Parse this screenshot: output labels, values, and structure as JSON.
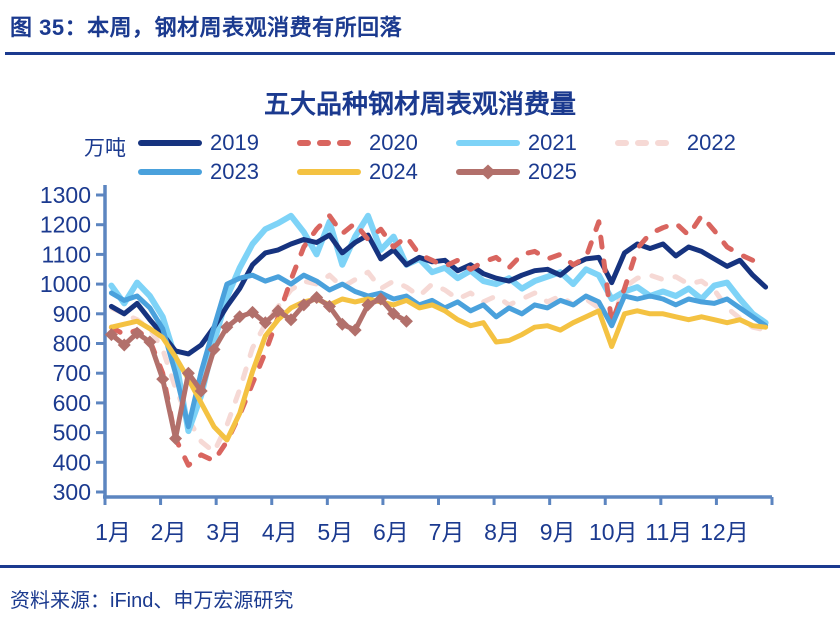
{
  "figure": {
    "caption": "图 35：本周，钢材周表观消费有所回落"
  },
  "source": {
    "text": "资料来源：iFind、申万宏源研究"
  },
  "chart_data": {
    "type": "line",
    "title": "五大品种钢材周表观消费量",
    "unit_label": "万吨",
    "x_axis": {
      "months": [
        "1月",
        "2月",
        "3月",
        "4月",
        "5月",
        "6月",
        "7月",
        "8月",
        "9月",
        "10月",
        "11月",
        "12月"
      ],
      "weeks_per_year": 52
    },
    "y_axis": {
      "min": 300,
      "max": 1300,
      "ticks": [
        1300,
        1200,
        1100,
        1000,
        900,
        800,
        700,
        600,
        500,
        400,
        300
      ]
    },
    "colors": {
      "axis": "#5C85C0",
      "text": "#1B3A8F"
    },
    "legend_position": "top",
    "grid": false,
    "draw_order": [
      "2022",
      "2021",
      "2019",
      "2020",
      "2023",
      "2024",
      "2025"
    ],
    "series": [
      {
        "name": "2019",
        "color": "#16337F",
        "style": "solid",
        "width": 5,
        "values": [
          925,
          900,
          935,
          880,
          830,
          775,
          765,
          795,
          855,
          925,
          985,
          1065,
          1105,
          1115,
          1135,
          1150,
          1140,
          1165,
          1105,
          1140,
          1165,
          1085,
          1115,
          1065,
          1090,
          1075,
          1080,
          1045,
          1065,
          1035,
          1020,
          1010,
          1030,
          1045,
          1050,
          1030,
          1065,
          1085,
          1090,
          1005,
          1105,
          1135,
          1120,
          1135,
          1095,
          1125,
          1110,
          1085,
          1060,
          1080,
          1030,
          990
        ]
      },
      {
        "name": "2020",
        "color": "#D9655F",
        "style": "dashed",
        "width": 5,
        "values": [
          855,
          830,
          845,
          810,
          700,
          480,
          390,
          425,
          405,
          470,
          560,
          665,
          770,
          890,
          1015,
          1125,
          1185,
          1230,
          1170,
          1205,
          1150,
          1185,
          1125,
          1160,
          1100,
          1080,
          1060,
          1080,
          1050,
          1075,
          1090,
          1055,
          1100,
          1110,
          1085,
          1100,
          1065,
          1090,
          1210,
          870,
          985,
          1120,
          1170,
          1190,
          1205,
          1165,
          1230,
          1180,
          1125,
          1100,
          1080,
          1090
        ]
      },
      {
        "name": "2021",
        "color": "#7ED3F7",
        "style": "solid",
        "width": 6,
        "values": [
          995,
          935,
          1005,
          960,
          890,
          750,
          505,
          625,
          805,
          955,
          1055,
          1135,
          1185,
          1205,
          1230,
          1175,
          1100,
          1210,
          1065,
          1160,
          1230,
          1115,
          1160,
          1065,
          1085,
          1040,
          1055,
          1020,
          1045,
          1010,
          1000,
          1020,
          985,
          1010,
          1025,
          1040,
          1000,
          1050,
          1030,
          950,
          975,
          990,
          960,
          975,
          960,
          985,
          950,
          995,
          1005,
          950,
          900,
          870
        ]
      },
      {
        "name": "2022",
        "color": "#F6D9D5",
        "style": "dashed",
        "width": 5,
        "values": [
          920,
          900,
          880,
          850,
          780,
          650,
          545,
          470,
          435,
          525,
          645,
          785,
          865,
          925,
          980,
          1010,
          1000,
          1030,
          990,
          1015,
          1040,
          985,
          1010,
          990,
          960,
          1000,
          980,
          950,
          970,
          940,
          960,
          930,
          950,
          970,
          940,
          960,
          930,
          950,
          920,
          880,
          990,
          1020,
          1030,
          1015,
          1025,
          1000,
          1010,
          980,
          920,
          885,
          855,
          845
        ]
      },
      {
        "name": "2023",
        "color": "#4AA1DC",
        "style": "solid",
        "width": 5,
        "values": [
          970,
          945,
          960,
          920,
          850,
          700,
          520,
          705,
          855,
          1000,
          1020,
          1030,
          1010,
          1025,
          1000,
          1030,
          1010,
          980,
          1000,
          975,
          960,
          970,
          950,
          960,
          930,
          945,
          920,
          940,
          910,
          930,
          890,
          920,
          900,
          930,
          920,
          945,
          930,
          960,
          940,
          860,
          960,
          950,
          960,
          950,
          930,
          950,
          940,
          935,
          950,
          920,
          890,
          860
        ]
      },
      {
        "name": "2024",
        "color": "#F4C242",
        "style": "solid",
        "width": 5,
        "values": [
          855,
          865,
          875,
          850,
          820,
          755,
          680,
          600,
          520,
          475,
          565,
          705,
          825,
          880,
          920,
          940,
          950,
          930,
          950,
          940,
          950,
          940,
          930,
          945,
          920,
          930,
          910,
          880,
          860,
          870,
          805,
          810,
          830,
          855,
          860,
          845,
          870,
          890,
          910,
          790,
          900,
          910,
          900,
          900,
          890,
          880,
          890,
          880,
          870,
          880,
          860,
          855
        ]
      },
      {
        "name": "2025",
        "color": "#B2706B",
        "style": "solid",
        "marker": "diamond",
        "width": 5,
        "values": [
          830,
          795,
          835,
          805,
          680,
          480,
          700,
          640,
          780,
          855,
          890,
          905,
          870,
          910,
          880,
          930,
          955,
          925,
          865,
          845,
          930,
          950,
          900,
          875
        ]
      }
    ]
  }
}
